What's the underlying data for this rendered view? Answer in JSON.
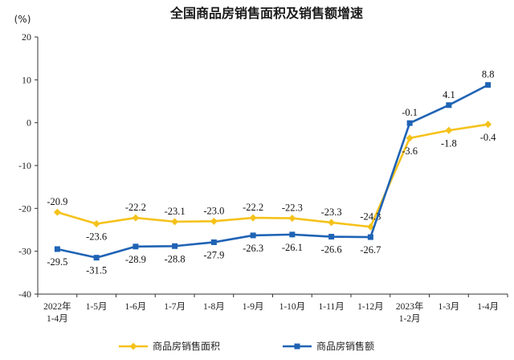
{
  "chart_data": {
    "type": "line",
    "title": "全国商品房销售面积及销售额增速",
    "unit_label": "(%)",
    "ylim": [
      -40,
      20
    ],
    "yticks": [
      20,
      10,
      0,
      -10,
      -20,
      -30,
      -40
    ],
    "categories": [
      [
        "2022年",
        "1-4月"
      ],
      [
        "1-5月"
      ],
      [
        "1-6月"
      ],
      [
        "1-7月"
      ],
      [
        "1-8月"
      ],
      [
        "1-9月"
      ],
      [
        "1-10月"
      ],
      [
        "1-11月"
      ],
      [
        "1-12月"
      ],
      [
        "2023年",
        "1-2月"
      ],
      [
        "1-3月"
      ],
      [
        "1-4月"
      ]
    ],
    "series": [
      {
        "name": "商品房销售面积",
        "color": "#f5c21b",
        "marker": "diamond",
        "values": [
          -20.9,
          -23.6,
          -22.2,
          -23.1,
          -23.0,
          -22.2,
          -22.3,
          -23.3,
          -24.3,
          -3.6,
          -1.8,
          -0.4
        ],
        "labels": [
          "-20.9",
          "-23.6",
          "-22.2",
          "-23.1",
          "-23.0",
          "-22.2",
          "-22.3",
          "-23.3",
          "-24.3",
          "-3.6",
          "-1.8",
          "-0.4"
        ]
      },
      {
        "name": "商品房销售额",
        "color": "#1f63b5",
        "marker": "square",
        "values": [
          -29.5,
          -31.5,
          -28.9,
          -28.8,
          -27.9,
          -26.3,
          -26.1,
          -26.6,
          -26.7,
          -0.1,
          4.1,
          8.8
        ],
        "labels": [
          "-29.5",
          "-31.5",
          "-28.9",
          "-28.8",
          "-27.9",
          "-26.3",
          "-26.1",
          "-26.6",
          "-26.7",
          "-0.1",
          "4.1",
          "8.8"
        ]
      }
    ],
    "legend_position": "bottom"
  }
}
